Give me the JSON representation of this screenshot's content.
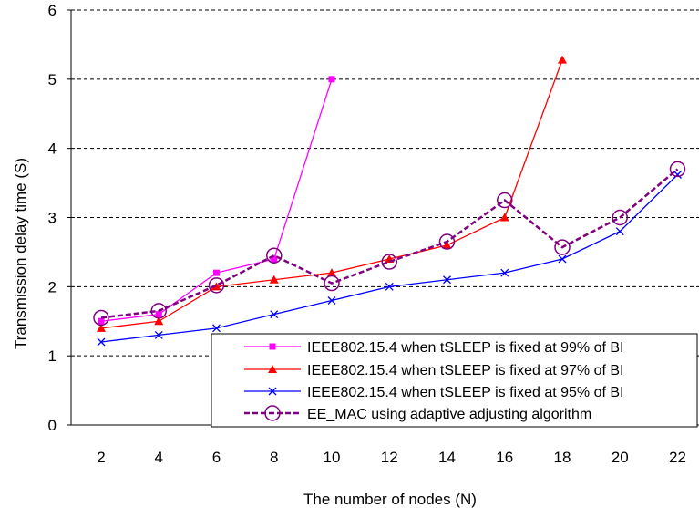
{
  "chart_data": {
    "type": "line",
    "title": "",
    "xlabel": "The number of nodes (N)",
    "ylabel": "Transmission delay time (S)",
    "x": [
      2,
      4,
      6,
      8,
      10,
      12,
      14,
      16,
      18,
      20,
      22
    ],
    "x_tick_labels": [
      "2",
      "4",
      "6",
      "8",
      "10",
      "12",
      "14",
      "16",
      "18",
      "20",
      "22"
    ],
    "ylim": [
      0,
      6
    ],
    "y_ticks": [
      0,
      1,
      2,
      3,
      4,
      5,
      6
    ],
    "y_tick_labels": [
      "0",
      "1",
      "2",
      "3",
      "4",
      "5",
      "6"
    ],
    "grid": "horizontal dashed",
    "legend_position": "bottom-right",
    "series": [
      {
        "name": "IEEE802.15.4 when tSLEEP is fixed at 99% of BI",
        "color": "#ff00ff",
        "marker": "square",
        "line": "solid",
        "x": [
          2,
          4,
          6,
          8,
          10
        ],
        "values": [
          1.5,
          1.6,
          2.2,
          2.4,
          5.0
        ]
      },
      {
        "name": "IEEE802.15.4 when tSLEEP is fixed at 97% of BI",
        "color": "#ff0000",
        "marker": "triangle",
        "line": "solid",
        "x": [
          2,
          4,
          6,
          8,
          10,
          12,
          14,
          16,
          18
        ],
        "values": [
          1.4,
          1.5,
          2.0,
          2.1,
          2.2,
          2.4,
          2.6,
          3.0,
          5.28
        ]
      },
      {
        "name": "IEEE802.15.4 when tSLEEP is fixed at 95% of BI",
        "color": "#0000ff",
        "marker": "x",
        "line": "solid",
        "x": [
          2,
          4,
          6,
          8,
          10,
          12,
          14,
          16,
          18,
          20,
          22
        ],
        "values": [
          1.2,
          1.3,
          1.4,
          1.6,
          1.8,
          2.0,
          2.1,
          2.2,
          2.4,
          2.8,
          3.62
        ]
      },
      {
        "name": "EE_MAC using adaptive adjusting algorithm",
        "color": "#800080",
        "marker": "circle",
        "line": "dashed",
        "x": [
          2,
          4,
          6,
          8,
          10,
          12,
          14,
          16,
          18,
          20,
          22
        ],
        "values": [
          1.55,
          1.65,
          2.02,
          2.45,
          2.05,
          2.36,
          2.65,
          3.25,
          2.57,
          3.0,
          3.7
        ]
      }
    ]
  }
}
